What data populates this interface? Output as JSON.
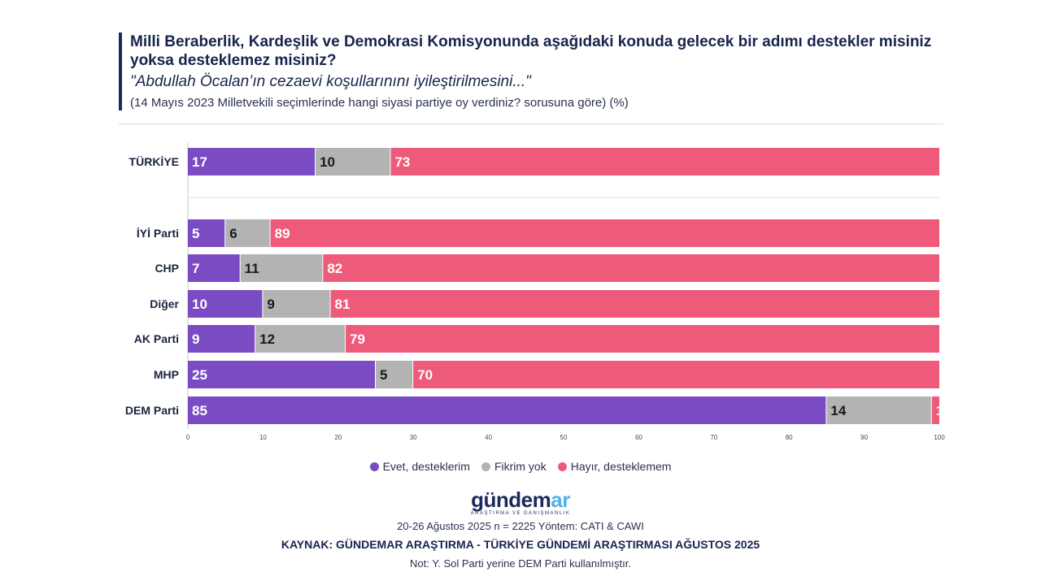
{
  "header": {
    "title": "Milli Beraberlik, Kardeşlik ve Demokrasi Komisyonunda aşağıdaki konuda gelecek bir adımı destekler misiniz yoksa desteklemez misiniz?",
    "subtitle": "\"Abdullah Öcalan’ın cezaevi koşullarınını iyileştirilmesini...\"",
    "note": "(14 Mayıs 2023 Milletvekili seçimlerinde hangi siyasi partiye oy verdiniz? sorusuna göre) (%)"
  },
  "colors": {
    "evet": "#7b4bc4",
    "fikrim": "#b3b3b3",
    "hayir": "#ee5a7a",
    "accent": "#1b2a5c"
  },
  "chart_data": {
    "type": "bar",
    "orientation": "horizontal",
    "stacked": true,
    "categories": [
      "TÜRKİYE",
      "İYİ Parti",
      "CHP",
      "Diğer",
      "AK Parti",
      "MHP",
      "DEM Parti"
    ],
    "series": [
      {
        "name": "Evet, desteklerim",
        "values": [
          17,
          5,
          7,
          10,
          9,
          25,
          85
        ]
      },
      {
        "name": "Fikrim yok",
        "values": [
          10,
          6,
          11,
          9,
          12,
          5,
          14
        ]
      },
      {
        "name": "Hayır, desteklemem",
        "values": [
          73,
          89,
          82,
          81,
          79,
          70,
          1
        ]
      }
    ],
    "xlim": [
      0,
      100
    ],
    "xticks": [
      "0",
      "10",
      "20",
      "30",
      "40",
      "50",
      "60",
      "70",
      "80",
      "90",
      "100"
    ],
    "legend_position": "bottom"
  },
  "legend": {
    "evet": "Evet, desteklerim",
    "fikrim": "Fikrim yok",
    "hayir": "Hayır, desteklemem"
  },
  "logo": {
    "main": "gündem",
    "accent": "ar",
    "tagline": "ARAŞTIRMA VE DANIŞMANLIK"
  },
  "footer": {
    "method": "20-26 Ağustos 2025 n = 2225 Yöntem: CATI & CAWI",
    "source": "KAYNAK: GÜNDEMAR ARAŞTIRMA - TÜRKİYE GÜNDEMİ ARAŞTIRMASI AĞUSTOS 2025",
    "note": "Not: Y. Sol Parti yerine DEM Parti kullanılmıştır."
  }
}
